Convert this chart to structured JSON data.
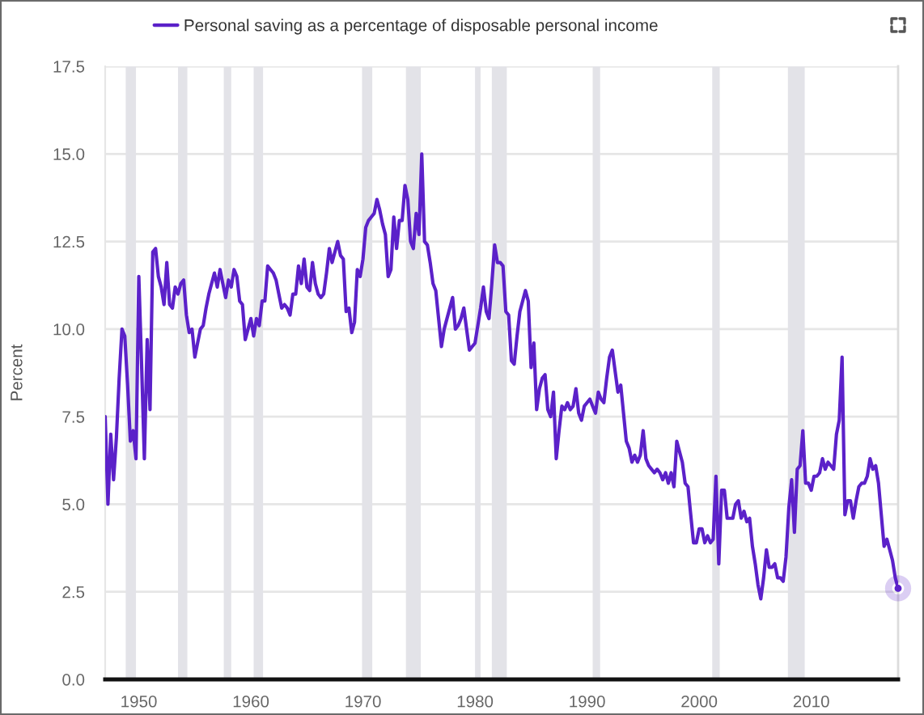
{
  "chart_data": {
    "type": "line",
    "ylabel": "Percent",
    "legend": "top left",
    "grid": "y",
    "xlim": [
      "1947-01",
      "2017-10"
    ],
    "xticks": [
      "1950",
      "1960",
      "1970",
      "1980",
      "1990",
      "2000",
      "2010"
    ],
    "ylim": [
      0,
      17.5
    ],
    "yticks": [
      {
        "value": 0,
        "label": "0.0"
      },
      {
        "value": 2.5,
        "label": "2.5"
      },
      {
        "value": 5,
        "label": "5.0"
      },
      {
        "value": 7.5,
        "label": "7.5"
      },
      {
        "value": 10,
        "label": "10.0"
      },
      {
        "value": 12.5,
        "label": "12.5"
      },
      {
        "value": 15,
        "label": "15.0"
      },
      {
        "value": 17.5,
        "label": "17.5"
      }
    ],
    "bands": [
      {
        "axis": "x",
        "from": "1948-11",
        "to": "1949-10",
        "color": "#e3e3e8"
      },
      {
        "axis": "x",
        "from": "1953-07",
        "to": "1954-05",
        "color": "#e3e3e8"
      },
      {
        "axis": "x",
        "from": "1957-08",
        "to": "1958-04",
        "color": "#e3e3e8"
      },
      {
        "axis": "x",
        "from": "1960-04",
        "to": "1961-02",
        "color": "#e3e3e8"
      },
      {
        "axis": "x",
        "from": "1969-12",
        "to": "1970-11",
        "color": "#e3e3e8"
      },
      {
        "axis": "x",
        "from": "1973-11",
        "to": "1975-03",
        "color": "#e3e3e8"
      },
      {
        "axis": "x",
        "from": "1980-01",
        "to": "1980-07",
        "color": "#e3e3e8"
      },
      {
        "axis": "x",
        "from": "1981-07",
        "to": "1982-11",
        "color": "#e3e3e8"
      },
      {
        "axis": "x",
        "from": "1990-07",
        "to": "1991-03",
        "color": "#e3e3e8"
      },
      {
        "axis": "x",
        "from": "2001-03",
        "to": "2001-11",
        "color": "#e3e3e8"
      },
      {
        "axis": "x",
        "from": "2007-12",
        "to": "2009-06",
        "color": "#e3e3e8"
      }
    ],
    "series": [
      {
        "name": "Personal saving as a percentage of disposable personal income",
        "color": "#5b21c9",
        "x": [
          "1947-01",
          "1947-04",
          "1947-07",
          "1947-10",
          "1948-01",
          "1948-04",
          "1948-07",
          "1948-10",
          "1949-01",
          "1949-04",
          "1949-07",
          "1949-10",
          "1950-01",
          "1950-04",
          "1950-07",
          "1950-10",
          "1951-01",
          "1951-04",
          "1951-07",
          "1951-10",
          "1952-01",
          "1952-04",
          "1952-07",
          "1952-10",
          "1953-01",
          "1953-04",
          "1953-07",
          "1953-10",
          "1954-01",
          "1954-04",
          "1954-07",
          "1954-10",
          "1955-01",
          "1955-04",
          "1955-07",
          "1955-10",
          "1956-01",
          "1956-04",
          "1956-07",
          "1956-10",
          "1957-01",
          "1957-04",
          "1957-07",
          "1957-10",
          "1958-01",
          "1958-04",
          "1958-07",
          "1958-10",
          "1959-01",
          "1959-04",
          "1959-07",
          "1959-10",
          "1960-01",
          "1960-04",
          "1960-07",
          "1960-10",
          "1961-01",
          "1961-04",
          "1961-07",
          "1961-10",
          "1962-01",
          "1962-04",
          "1962-07",
          "1962-10",
          "1963-01",
          "1963-04",
          "1963-07",
          "1963-10",
          "1964-01",
          "1964-04",
          "1964-07",
          "1964-10",
          "1965-01",
          "1965-04",
          "1965-07",
          "1965-10",
          "1966-01",
          "1966-04",
          "1966-07",
          "1966-10",
          "1967-01",
          "1967-04",
          "1967-07",
          "1967-10",
          "1968-01",
          "1968-04",
          "1968-07",
          "1968-10",
          "1969-01",
          "1969-04",
          "1969-07",
          "1969-10",
          "1970-01",
          "1970-04",
          "1970-07",
          "1970-10",
          "1971-01",
          "1971-04",
          "1971-07",
          "1971-10",
          "1972-01",
          "1972-04",
          "1972-07",
          "1972-10",
          "1973-01",
          "1973-04",
          "1973-07",
          "1973-10",
          "1974-01",
          "1974-04",
          "1974-07",
          "1974-10",
          "1975-01",
          "1975-04",
          "1975-07",
          "1975-10",
          "1976-01",
          "1976-04",
          "1976-07",
          "1976-10",
          "1977-01",
          "1977-04",
          "1977-07",
          "1977-10",
          "1978-01",
          "1978-04",
          "1978-07",
          "1978-10",
          "1979-01",
          "1979-04",
          "1979-07",
          "1979-10",
          "1980-01",
          "1980-04",
          "1980-07",
          "1980-10",
          "1981-01",
          "1981-04",
          "1981-07",
          "1981-10",
          "1982-01",
          "1982-04",
          "1982-07",
          "1982-10",
          "1983-01",
          "1983-04",
          "1983-07",
          "1983-10",
          "1984-01",
          "1984-04",
          "1984-07",
          "1984-10",
          "1985-01",
          "1985-04",
          "1985-07",
          "1985-10",
          "1986-01",
          "1986-04",
          "1986-07",
          "1986-10",
          "1987-01",
          "1987-04",
          "1987-07",
          "1987-10",
          "1988-01",
          "1988-04",
          "1988-07",
          "1988-10",
          "1989-01",
          "1989-04",
          "1989-07",
          "1989-10",
          "1990-01",
          "1990-04",
          "1990-07",
          "1990-10",
          "1991-01",
          "1991-04",
          "1991-07",
          "1991-10",
          "1992-01",
          "1992-04",
          "1992-07",
          "1992-10",
          "1993-01",
          "1993-04",
          "1993-07",
          "1993-10",
          "1994-01",
          "1994-04",
          "1994-07",
          "1994-10",
          "1995-01",
          "1995-04",
          "1995-07",
          "1995-10",
          "1996-01",
          "1996-04",
          "1996-07",
          "1996-10",
          "1997-01",
          "1997-04",
          "1997-07",
          "1997-10",
          "1998-01",
          "1998-04",
          "1998-07",
          "1998-10",
          "1999-01",
          "1999-04",
          "1999-07",
          "1999-10",
          "2000-01",
          "2000-04",
          "2000-07",
          "2000-10",
          "2001-01",
          "2001-04",
          "2001-07",
          "2001-10",
          "2002-01",
          "2002-04",
          "2002-07",
          "2002-10",
          "2003-01",
          "2003-04",
          "2003-07",
          "2003-10",
          "2004-01",
          "2004-04",
          "2004-07",
          "2004-10",
          "2005-01",
          "2005-04",
          "2005-07",
          "2005-10",
          "2006-01",
          "2006-04",
          "2006-07",
          "2006-10",
          "2007-01",
          "2007-04",
          "2007-07",
          "2007-10",
          "2008-01",
          "2008-04",
          "2008-07",
          "2008-10",
          "2009-01",
          "2009-04",
          "2009-07",
          "2009-10",
          "2010-01",
          "2010-04",
          "2010-07",
          "2010-10",
          "2011-01",
          "2011-04",
          "2011-07",
          "2011-10",
          "2012-01",
          "2012-04",
          "2012-07",
          "2012-10",
          "2013-01",
          "2013-04",
          "2013-07",
          "2013-10",
          "2014-01",
          "2014-04",
          "2014-07",
          "2014-10",
          "2015-01",
          "2015-04",
          "2015-07",
          "2015-10",
          "2016-01",
          "2016-04",
          "2016-07",
          "2016-10",
          "2017-01",
          "2017-04",
          "2017-07",
          "2017-10"
        ],
        "values": [
          7.5,
          5.0,
          7.0,
          5.7,
          6.9,
          8.6,
          10.0,
          9.8,
          8.4,
          6.8,
          7.1,
          6.3,
          11.5,
          9.0,
          6.3,
          9.7,
          7.7,
          12.2,
          12.3,
          11.5,
          11.2,
          10.7,
          11.9,
          10.7,
          10.6,
          11.2,
          11.0,
          11.3,
          11.4,
          10.4,
          9.9,
          10.0,
          9.2,
          9.6,
          10.0,
          10.1,
          10.6,
          11.0,
          11.3,
          11.6,
          11.2,
          11.7,
          11.3,
          10.9,
          11.4,
          11.2,
          11.7,
          11.5,
          10.8,
          10.7,
          9.7,
          10.0,
          10.3,
          9.8,
          10.3,
          10.1,
          10.8,
          10.8,
          11.8,
          11.7,
          11.6,
          11.4,
          11.0,
          10.6,
          10.7,
          10.6,
          10.4,
          11.0,
          11.0,
          11.8,
          11.3,
          12.0,
          11.2,
          11.1,
          11.9,
          11.3,
          11.0,
          10.9,
          11.0,
          11.6,
          12.3,
          11.9,
          12.2,
          12.5,
          12.1,
          12.0,
          10.5,
          10.6,
          9.9,
          10.2,
          11.7,
          11.5,
          12.0,
          12.9,
          13.1,
          13.2,
          13.3,
          13.7,
          13.4,
          13.0,
          12.7,
          11.5,
          11.7,
          13.2,
          12.3,
          13.1,
          13.1,
          14.1,
          13.7,
          12.5,
          12.3,
          13.3,
          12.7,
          15.0,
          12.5,
          12.4,
          11.9,
          11.3,
          11.1,
          10.3,
          9.5,
          10.0,
          10.3,
          10.6,
          10.9,
          10.0,
          10.1,
          10.3,
          10.6,
          10.0,
          9.4,
          9.5,
          9.6,
          10.1,
          10.6,
          11.2,
          10.5,
          10.3,
          11.3,
          12.4,
          11.9,
          11.9,
          11.8,
          10.5,
          10.4,
          9.1,
          9.0,
          9.8,
          10.5,
          10.8,
          11.1,
          10.8,
          8.9,
          9.6,
          7.7,
          8.3,
          8.6,
          8.7,
          7.7,
          7.5,
          8.2,
          6.3,
          7.1,
          7.8,
          7.7,
          7.9,
          7.7,
          7.8,
          8.3,
          7.6,
          7.4,
          7.8,
          7.9,
          8.0,
          7.8,
          7.6,
          8.2,
          8.0,
          7.9,
          8.6,
          9.2,
          9.4,
          8.8,
          8.2,
          8.4,
          7.6,
          6.8,
          6.6,
          6.2,
          6.4,
          6.2,
          6.4,
          7.1,
          6.3,
          6.1,
          6.0,
          5.9,
          6.0,
          5.9,
          5.7,
          5.9,
          5.6,
          5.9,
          5.5,
          6.8,
          6.5,
          6.2,
          5.6,
          5.5,
          4.7,
          3.9,
          3.9,
          4.3,
          4.3,
          3.9,
          4.1,
          3.9,
          4.0,
          5.8,
          3.3,
          5.4,
          5.4,
          4.6,
          4.6,
          4.6,
          5.0,
          5.1,
          4.6,
          4.8,
          4.5,
          4.6,
          3.8,
          3.3,
          2.7,
          2.3,
          2.9,
          3.7,
          3.2,
          3.2,
          3.3,
          2.9,
          2.9,
          2.8,
          3.5,
          4.9,
          5.7,
          4.2,
          6.0,
          6.1,
          7.1,
          5.6,
          5.6,
          5.4,
          5.8,
          5.8,
          5.9,
          6.3,
          6.0,
          6.2,
          6.1,
          6.0,
          7.0,
          7.4,
          9.2,
          4.7,
          5.1,
          5.1,
          4.6,
          5.1,
          5.5,
          5.6,
          5.6,
          5.8,
          6.3,
          6.0,
          6.1,
          5.6,
          4.7,
          3.8,
          4.0,
          3.7,
          3.4,
          2.9,
          2.6
        ]
      },
      {
        "type": "scatter",
        "marker": "circle",
        "color": "#5b21c9",
        "x": [
          "2017-10"
        ],
        "values": [
          2.6
        ]
      }
    ]
  }
}
